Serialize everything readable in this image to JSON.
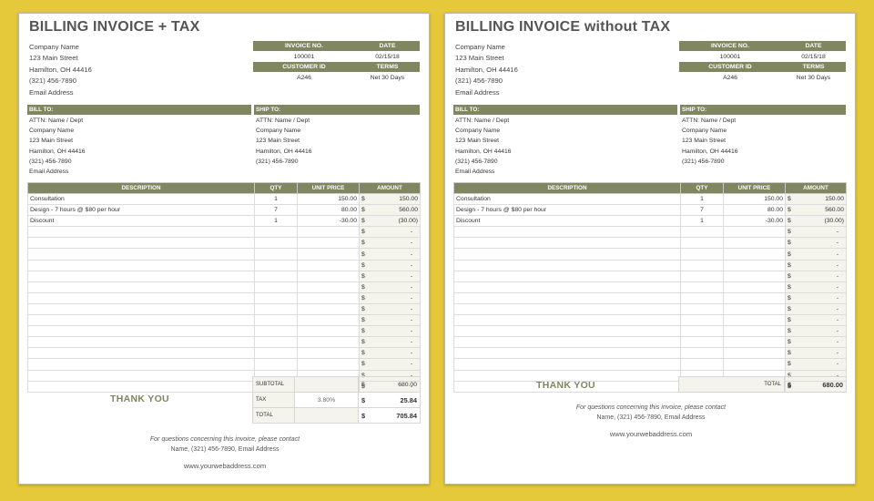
{
  "invoices": [
    {
      "title": "BILLING INVOICE + TAX",
      "company": [
        "Company Name",
        "123 Main Street",
        "Hamilton, OH  44416",
        "(321) 456-7890",
        "Email Address"
      ],
      "meta": {
        "invoice_no_label": "INVOICE NO.",
        "date_label": "DATE",
        "invoice_no": "100001",
        "date": "02/15/18",
        "customer_id_label": "CUSTOMER ID",
        "terms_label": "TERMS",
        "customer_id": "A246",
        "terms": "Net 30 Days"
      },
      "bill_to": {
        "label": "BILL TO:",
        "lines": [
          "ATTN: Name / Dept",
          "Company Name",
          "123 Main Street",
          "Hamilton, OH  44416",
          "(321) 456-7890",
          "Email Address"
        ]
      },
      "ship_to": {
        "label": "SHIP TO:",
        "lines": [
          "ATTN: Name / Dept",
          "Company Name",
          "123 Main Street",
          "Hamilton, OH  44416",
          "(321) 456-7890"
        ]
      },
      "columns": [
        "DESCRIPTION",
        "QTY",
        "UNIT PRICE",
        "AMOUNT"
      ],
      "currency": "$",
      "empty_amount": "-",
      "items": [
        {
          "desc": "Consultation",
          "qty": "1",
          "price": "150.00",
          "amount": "150.00"
        },
        {
          "desc": "Design - 7 hours @ $80 per hour",
          "qty": "7",
          "price": "80.00",
          "amount": "560.00"
        },
        {
          "desc": "Discount",
          "qty": "1",
          "price": "-30.00",
          "amount": "(30.00)"
        }
      ],
      "empty_rows": 15,
      "totals": {
        "subtotal_label": "SUBTOTAL",
        "subtotal": "680.00",
        "tax_label": "TAX",
        "tax_rate": "3.80%",
        "tax": "25.84",
        "total_label": "TOTAL",
        "total": "705.84"
      },
      "thank_you": "THANK YOU",
      "footer": {
        "question": "For questions concerning this invoice, please contact",
        "contact": "Name, (321) 456-7890, Email Address",
        "website": "www.yourwebaddress.com"
      }
    },
    {
      "title": "BILLING INVOICE without TAX",
      "company": [
        "Company Name",
        "123 Main Street",
        "Hamilton, OH  44416",
        "(321) 456-7890",
        "Email Address"
      ],
      "meta": {
        "invoice_no_label": "INVOICE NO.",
        "date_label": "DATE",
        "invoice_no": "100001",
        "date": "02/15/18",
        "customer_id_label": "CUSTOMER ID",
        "terms_label": "TERMS",
        "customer_id": "A246",
        "terms": "Net 30 Days"
      },
      "bill_to": {
        "label": "BILL TO:",
        "lines": [
          "ATTN: Name / Dept",
          "Company Name",
          "123 Main Street",
          "Hamilton, OH  44416",
          "(321) 456-7890",
          "Email Address"
        ]
      },
      "ship_to": {
        "label": "SHIP TO:",
        "lines": [
          "ATTN: Name / Dept",
          "Company Name",
          "123 Main Street",
          "Hamilton, OH  44416",
          "(321) 456-7890"
        ]
      },
      "columns": [
        "DESCRIPTION",
        "QTY",
        "UNIT PRICE",
        "AMOUNT"
      ],
      "currency": "$",
      "empty_amount": "-",
      "items": [
        {
          "desc": "Consultation",
          "qty": "1",
          "price": "150.00",
          "amount": "150.00"
        },
        {
          "desc": "Design - 7 hours @ $80 per hour",
          "qty": "7",
          "price": "80.00",
          "amount": "560.00"
        },
        {
          "desc": "Discount",
          "qty": "1",
          "price": "-30.00",
          "amount": "(30.00)"
        }
      ],
      "empty_rows": 15,
      "totals": {
        "total_label": "TOTAL",
        "total": "680.00"
      },
      "thank_you": "THANK YOU",
      "footer": {
        "question": "For questions concerning this invoice, please contact",
        "contact": "Name, (321) 456-7890, Email Address",
        "website": "www.yourwebaddress.com"
      }
    }
  ]
}
